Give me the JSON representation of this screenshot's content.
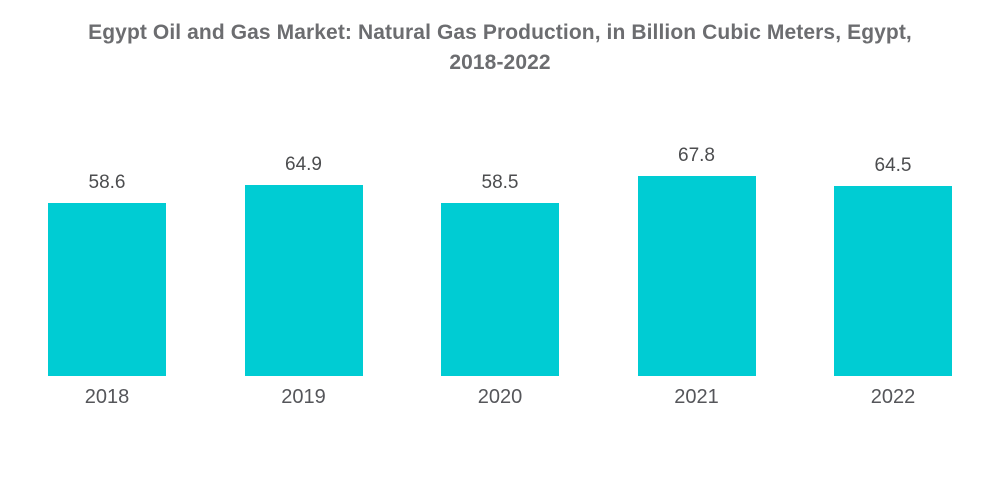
{
  "title": {
    "line1": "Egypt Oil and Gas Market: Natural Gas Production, in Billion Cubic Meters, Egypt,",
    "line2": "2018-2022"
  },
  "chart_data": {
    "type": "bar",
    "title": "Egypt Oil and Gas Market: Natural Gas Production, in Billion Cubic Meters, Egypt, 2018-2022",
    "categories": [
      "2018",
      "2019",
      "2020",
      "2021",
      "2022"
    ],
    "values": [
      58.6,
      64.9,
      58.5,
      67.8,
      64.5
    ],
    "value_labels": [
      "58.6",
      "64.9",
      "58.5",
      "67.8",
      "64.5"
    ],
    "unit": "Billion Cubic Meters",
    "xlabel": "",
    "ylabel": "",
    "ylim": [
      0,
      70
    ],
    "grid": false,
    "legend": "none",
    "bar_color": "#00ccd3"
  },
  "colors": {
    "background": "#ffffff",
    "title_text": "#6c6d70",
    "value_label_text": "#4c4d4f",
    "year_label_text": "#55565a",
    "bar": "#00ccd3"
  }
}
